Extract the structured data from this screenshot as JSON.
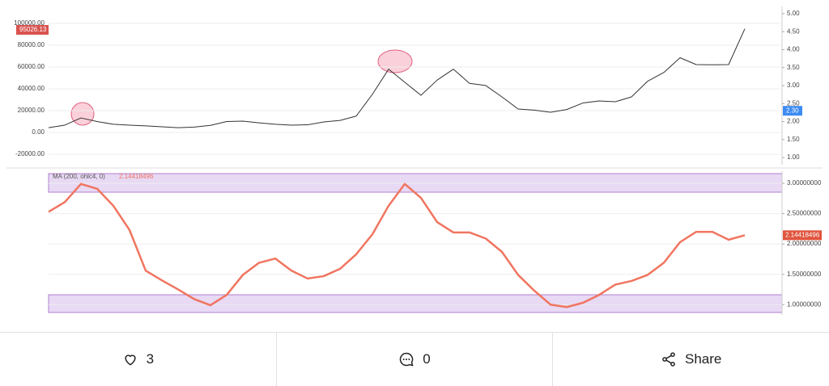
{
  "chart_data": [
    {
      "type": "line",
      "ylim": [
        -29600,
        115500
      ],
      "yticks": [
        {
          "value": 100000,
          "label": "100000.00"
        },
        {
          "value": 80000,
          "label": "80000.00"
        },
        {
          "value": 60000,
          "label": "60000.00"
        },
        {
          "value": 40000,
          "label": "40000.00"
        },
        {
          "value": 20000,
          "label": "20000.00"
        },
        {
          "value": 0,
          "label": "0.00"
        },
        {
          "value": -20000,
          "label": "-20000.00"
        }
      ],
      "y2lim": [
        0.8,
        5.2
      ],
      "y2ticks": [
        {
          "value": 5,
          "label": "5.00"
        },
        {
          "value": 4.5,
          "label": "4.50"
        },
        {
          "value": 4,
          "label": "4.00"
        },
        {
          "value": 3.5,
          "label": "3.50"
        },
        {
          "value": 3,
          "label": "3.00"
        },
        {
          "value": 2.5,
          "label": "2.50"
        },
        {
          "value": 2,
          "label": "2.00"
        },
        {
          "value": 1.5,
          "label": "1.50"
        },
        {
          "value": 1,
          "label": "1.00"
        }
      ],
      "y2_marker": {
        "value": 2.3,
        "label": "2.30"
      },
      "grid": true,
      "series": [
        {
          "color": "#333333",
          "values": [
            4400,
            6700,
            13300,
            10000,
            7500,
            6700,
            6000,
            5200,
            4400,
            4900,
            6500,
            10000,
            10400,
            8800,
            7500,
            6700,
            7000,
            9600,
            11000,
            15000,
            35000,
            58000,
            46000,
            34100,
            48000,
            58000,
            45000,
            43000,
            32600,
            21500,
            20500,
            18500,
            21000,
            27000,
            28900,
            28100,
            32600,
            47000,
            55000,
            68500,
            62200,
            62000,
            62200,
            95026.13
          ]
        }
      ]
    },
    {
      "type": "line",
      "ylim": [
        0.83,
        3.2
      ],
      "y2ticks": [
        {
          "value": 3,
          "label": "3.00000000"
        },
        {
          "value": 2.5,
          "label": "2.50000000"
        },
        {
          "value": 2,
          "label": "2.00000000"
        },
        {
          "value": 1.5,
          "label": "1.50000000"
        },
        {
          "value": 1,
          "label": "1.00000000"
        }
      ],
      "grid": true,
      "series": [
        {
          "name": "MA (200, ohlc4, 0)",
          "color": "#f07560",
          "values": [
            2.53,
            2.69,
            2.99,
            2.91,
            2.63,
            2.23,
            1.56,
            1.4,
            1.25,
            1.09,
            0.99,
            1.16,
            1.49,
            1.69,
            1.76,
            1.56,
            1.43,
            1.47,
            1.59,
            1.83,
            2.16,
            2.63,
            2.99,
            2.76,
            2.36,
            2.19,
            2.19,
            2.09,
            1.87,
            1.49,
            1.23,
            1.0,
            0.96,
            1.03,
            1.16,
            1.33,
            1.39,
            1.49,
            1.69,
            2.03,
            2.2,
            2.2,
            2.07,
            2.14418496
          ]
        }
      ]
    }
  ],
  "footer": {
    "likes": 3,
    "comments": 0,
    "share": "Share"
  }
}
